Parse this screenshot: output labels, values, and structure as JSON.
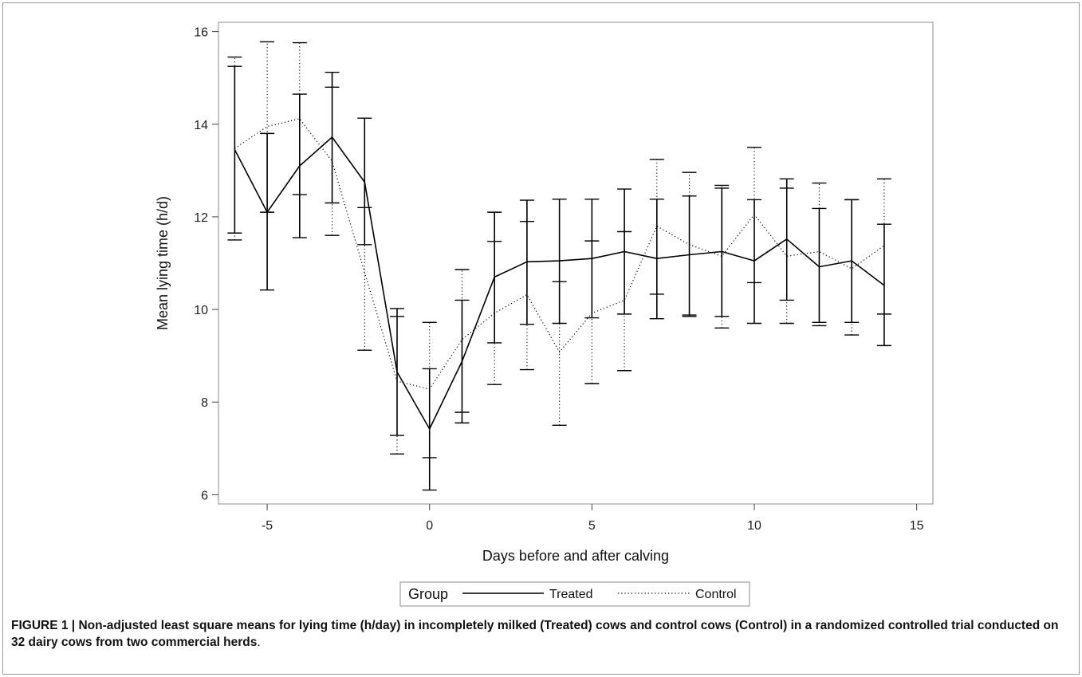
{
  "chart_data": {
    "type": "line",
    "title": "",
    "xlabel": "Days before and after calving",
    "ylabel": "Mean lying time (h/d)",
    "xlim": [
      -6.5,
      15.5
    ],
    "ylim": [
      5.8,
      16.2
    ],
    "xticks": [
      -5,
      0,
      5,
      10,
      15
    ],
    "yticks": [
      6,
      8,
      10,
      12,
      14,
      16
    ],
    "grid": false,
    "legend": {
      "title": "Group",
      "position": "bottom-center"
    },
    "x": [
      -6,
      -5,
      -4,
      -3,
      -2,
      -1,
      0,
      1,
      2,
      3,
      4,
      5,
      6,
      7,
      8,
      9,
      10,
      11,
      12,
      13,
      14
    ],
    "series": [
      {
        "name": "Treated",
        "line_style": "solid",
        "values": [
          13.45,
          12.1,
          13.1,
          13.72,
          12.75,
          8.65,
          7.42,
          8.88,
          10.7,
          11.03,
          11.05,
          11.1,
          11.25,
          11.1,
          11.18,
          11.25,
          11.05,
          11.52,
          10.92,
          11.05,
          10.52
        ],
        "lower": [
          11.65,
          10.42,
          11.55,
          12.3,
          11.4,
          7.28,
          6.1,
          7.55,
          9.28,
          9.68,
          9.7,
          9.82,
          9.9,
          9.8,
          9.88,
          9.85,
          9.7,
          10.2,
          9.72,
          9.72,
          9.22
        ],
        "upper": [
          15.25,
          13.8,
          14.65,
          15.12,
          14.13,
          10.02,
          8.72,
          10.2,
          12.1,
          12.36,
          12.38,
          12.38,
          12.6,
          12.38,
          12.45,
          12.62,
          12.37,
          12.82,
          12.18,
          12.37,
          11.84
        ]
      },
      {
        "name": "Control",
        "line_style": "dotted",
        "values": [
          13.48,
          13.95,
          14.12,
          13.2,
          10.8,
          8.45,
          8.28,
          9.35,
          9.92,
          10.32,
          9.08,
          9.92,
          10.2,
          11.8,
          11.4,
          11.15,
          12.05,
          11.15,
          11.25,
          10.88,
          11.38
        ],
        "lower": [
          11.5,
          12.1,
          12.48,
          11.6,
          9.12,
          6.88,
          6.8,
          7.78,
          8.38,
          8.7,
          7.5,
          8.4,
          8.68,
          10.33,
          9.85,
          9.6,
          10.58,
          9.7,
          9.65,
          9.45,
          9.9
        ],
        "upper": [
          15.45,
          15.78,
          15.76,
          14.8,
          12.2,
          9.85,
          9.72,
          10.86,
          11.47,
          11.9,
          10.6,
          11.48,
          11.68,
          13.24,
          12.96,
          12.68,
          13.5,
          12.62,
          12.73,
          12.37,
          12.82
        ]
      }
    ]
  },
  "caption": {
    "label": "FIGURE 1 | ",
    "text": "Non-adjusted least square means for lying time (h/day) in incompletely milked (Treated) cows and control cows (Control) in a randomized controlled trial conducted on 32 dairy cows from two commercial herds",
    "end": "."
  }
}
